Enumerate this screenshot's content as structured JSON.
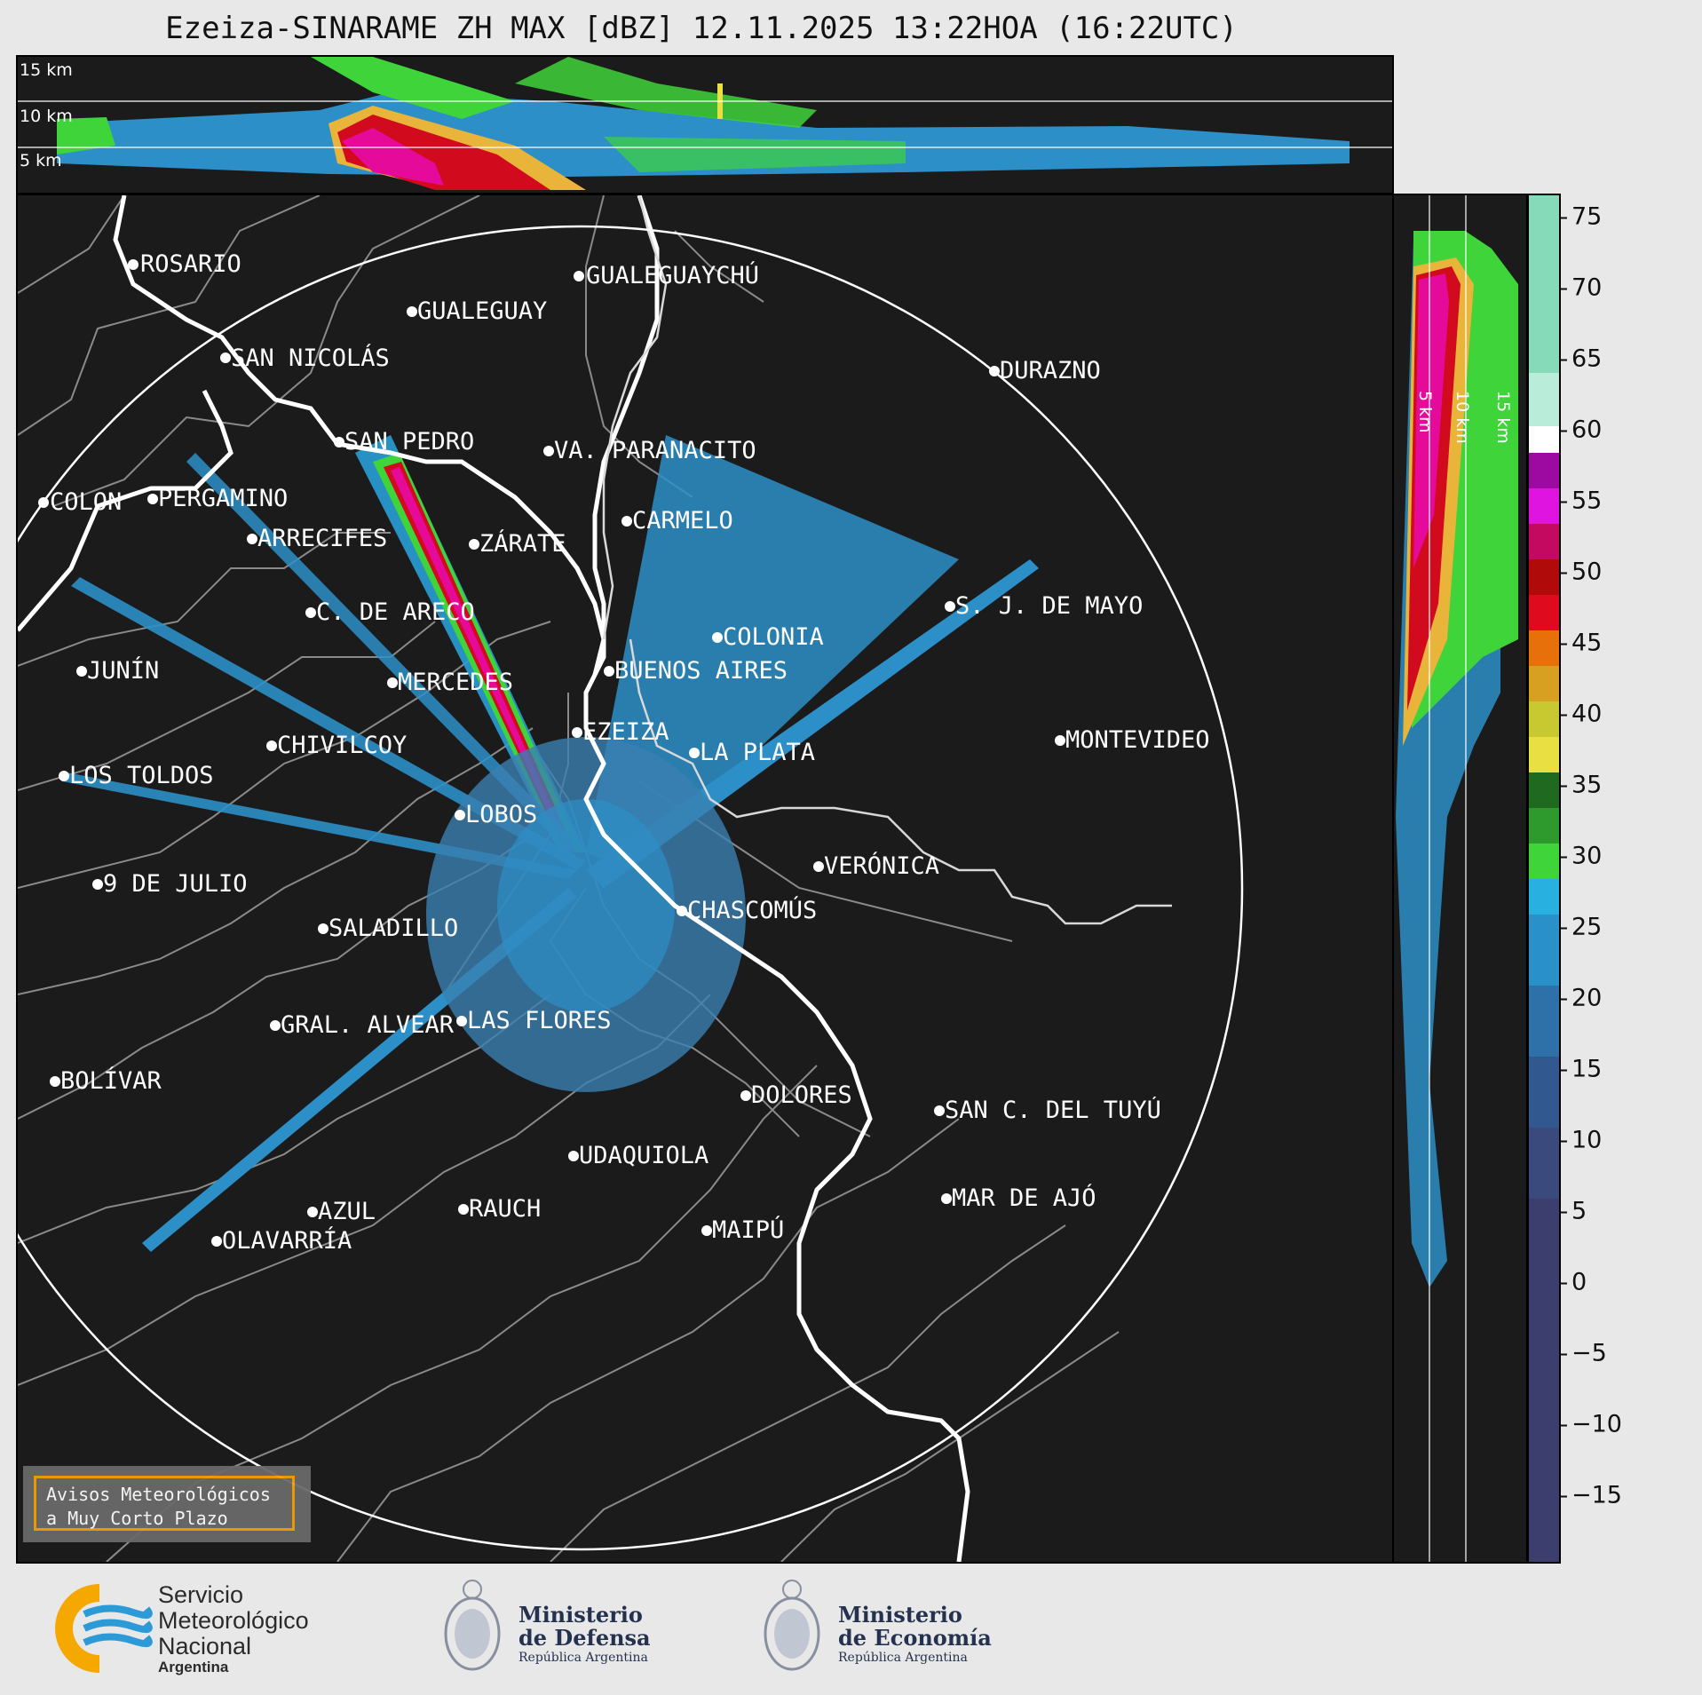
{
  "title": "Ezeiza-SINARAME ZH MAX [dBZ] 12.11.2025 13:22HOA (16:22UTC)",
  "top_altitude_labels": [
    "15 km",
    "10 km",
    "5 km"
  ],
  "side_altitude_labels": [
    "5 km",
    "10 km",
    "15 km"
  ],
  "colorbar_ticks": [
    "75",
    "70",
    "65",
    "60",
    "55",
    "50",
    "45",
    "40",
    "35",
    "30",
    "25",
    "20",
    "15",
    "10",
    "5",
    "0",
    "−5",
    "−10",
    "−15"
  ],
  "cities": [
    {
      "name": "ROSARIO"
    },
    {
      "name": "GUALEGUAYCHÚ"
    },
    {
      "name": "GUALEGUAY"
    },
    {
      "name": "SAN NICOLÁS"
    },
    {
      "name": "DURAZNO"
    },
    {
      "name": "SAN PEDRO"
    },
    {
      "name": "VA. PARANACITO"
    },
    {
      "name": "COLON"
    },
    {
      "name": "PERGAMINO"
    },
    {
      "name": "CARMELO"
    },
    {
      "name": "ARRECIFES"
    },
    {
      "name": "ZÁRATE"
    },
    {
      "name": "C. DE ARECO"
    },
    {
      "name": "S. J. DE MAYO"
    },
    {
      "name": "COLONIA"
    },
    {
      "name": "JUNÍN"
    },
    {
      "name": "BUENOS AIRES"
    },
    {
      "name": "MERCEDES"
    },
    {
      "name": "EZEIZA"
    },
    {
      "name": "MONTEVIDEO"
    },
    {
      "name": "CHIVILCOY"
    },
    {
      "name": "LA PLATA"
    },
    {
      "name": "LOS TOLDOS"
    },
    {
      "name": "LOBOS"
    },
    {
      "name": "VERÓNICA"
    },
    {
      "name": "9 DE JULIO"
    },
    {
      "name": "CHASCOMÚS"
    },
    {
      "name": "SALADILLO"
    },
    {
      "name": "GRAL. ALVEAR"
    },
    {
      "name": "LAS FLORES"
    },
    {
      "name": "BOLÍVAR"
    },
    {
      "name": "DOLORES"
    },
    {
      "name": "SAN C. DEL TUYÚ"
    },
    {
      "name": "UDAQUIOLA"
    },
    {
      "name": "MAR DE AJÓ"
    },
    {
      "name": "AZUL"
    },
    {
      "name": "RAUCH"
    },
    {
      "name": "OLAVARRÍA"
    },
    {
      "name": "MAIPÚ"
    }
  ],
  "aviso": {
    "line1": "Avisos Meteorológicos",
    "line2": "a Muy Corto Plazo"
  },
  "footer": {
    "smn": {
      "line1": "Servicio",
      "line2": "Meteorológico",
      "line3": "Nacional",
      "line4": "Argentina"
    },
    "defensa": {
      "line1": "Ministerio",
      "line2": "de Defensa",
      "line3": "República Argentina"
    },
    "economia": {
      "line1": "Ministerio",
      "line2": "de Economía",
      "line3": "República Argentina"
    }
  },
  "colors": {
    "background": "#1b1b1b",
    "range_ring": "#ffffff",
    "accent_orange": "#f5a000",
    "footer_text": "#25324f"
  }
}
